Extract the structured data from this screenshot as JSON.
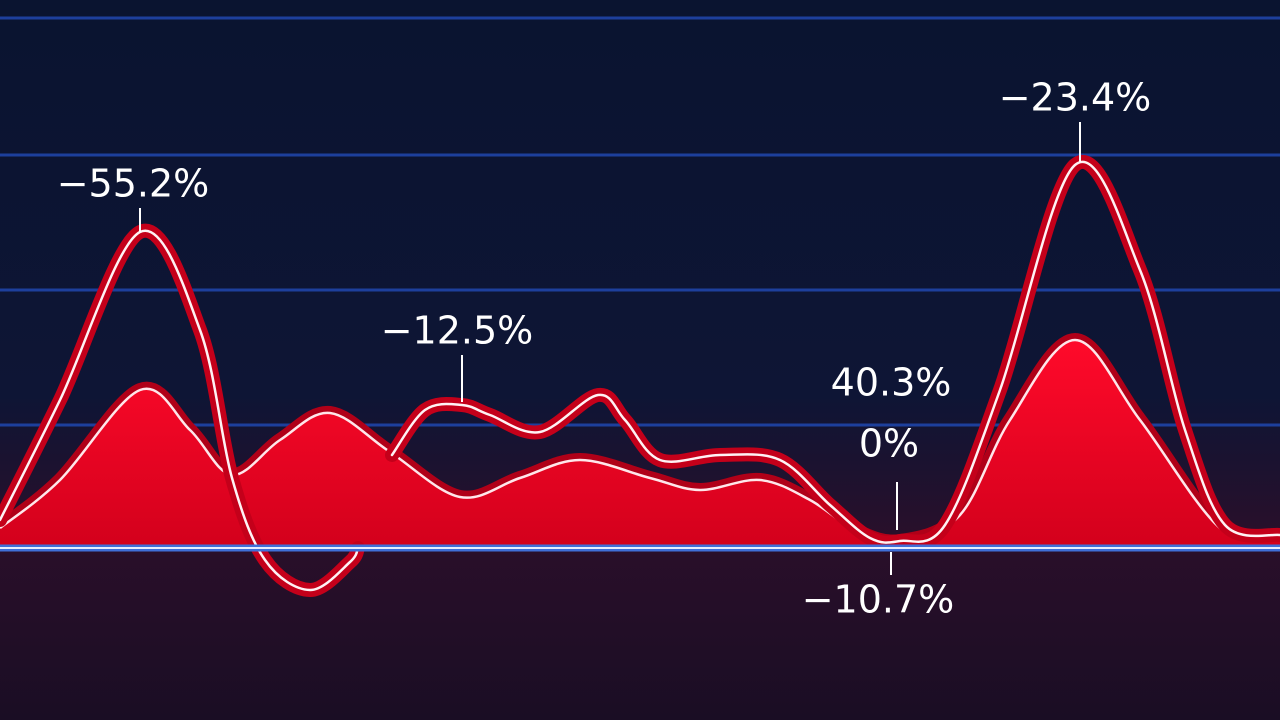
{
  "annotations": [
    "−55.2%",
    "−12.5%",
    "40.3%",
    "0%",
    "−10.7%",
    "−23.4%"
  ]
}
